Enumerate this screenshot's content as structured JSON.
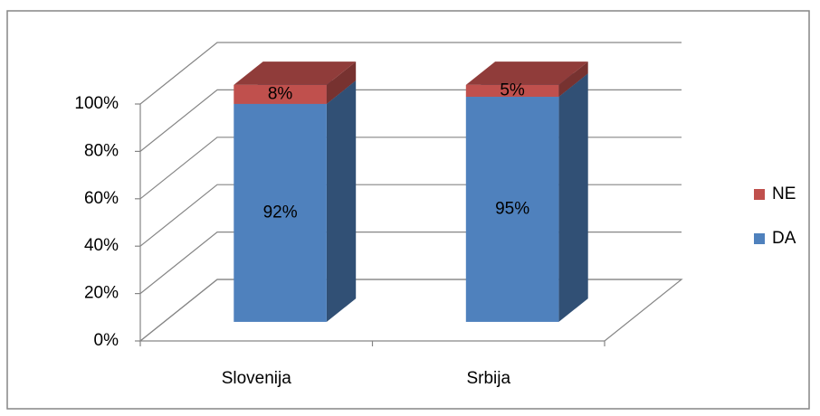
{
  "chart_data": {
    "type": "stacked-bar-3d",
    "categories": [
      "Slovenija",
      "Srbija"
    ],
    "series": [
      {
        "name": "DA",
        "color": "#4f81bd",
        "values": [
          92,
          95
        ],
        "value_labels": [
          "92%",
          "95%"
        ]
      },
      {
        "name": "NE",
        "color": "#c0504d",
        "values": [
          8,
          5
        ],
        "value_labels": [
          "8%",
          "5%"
        ]
      }
    ],
    "ylim": [
      0,
      100
    ],
    "yticks": [
      {
        "value": 0,
        "label": "0%"
      },
      {
        "value": 20,
        "label": "20%"
      },
      {
        "value": 40,
        "label": "40%"
      },
      {
        "value": 60,
        "label": "60%"
      },
      {
        "value": 80,
        "label": "80%"
      },
      {
        "value": 100,
        "label": "100%"
      }
    ],
    "grid": true,
    "legend": "right"
  }
}
